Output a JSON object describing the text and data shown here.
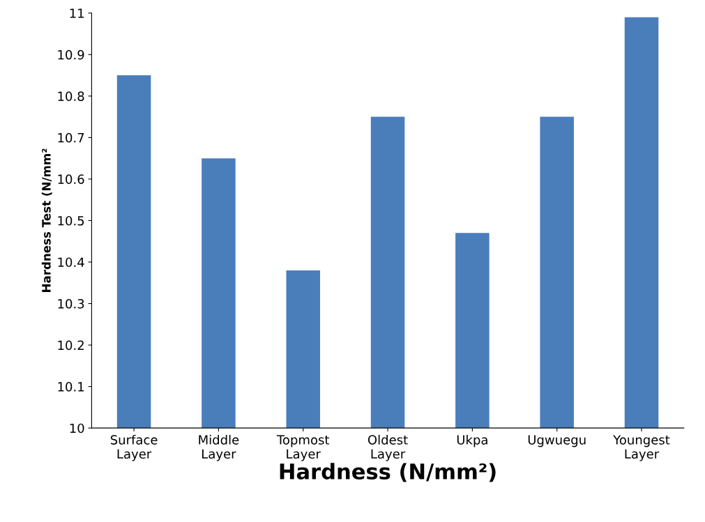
{
  "chart_data": {
    "type": "bar",
    "xlabel": "Hardness (N/mm²)",
    "ylabel": "Hardness Test (N/mm²",
    "categories": [
      "Surface\nLayer",
      "Middle\nLayer",
      "Topmost\nLayer",
      "Oldest\nLayer",
      "Ukpa",
      "Ugwuegu",
      "Youngest\nLayer"
    ],
    "values": [
      10.85,
      10.65,
      10.38,
      10.75,
      10.47,
      10.75,
      10.99
    ],
    "color": "#4a7ebb",
    "ylim": [
      10,
      11
    ],
    "yticks": [
      10,
      10.1,
      10.2,
      10.3,
      10.4,
      10.5,
      10.6,
      10.7,
      10.8,
      10.9,
      11
    ],
    "grid": false
  }
}
